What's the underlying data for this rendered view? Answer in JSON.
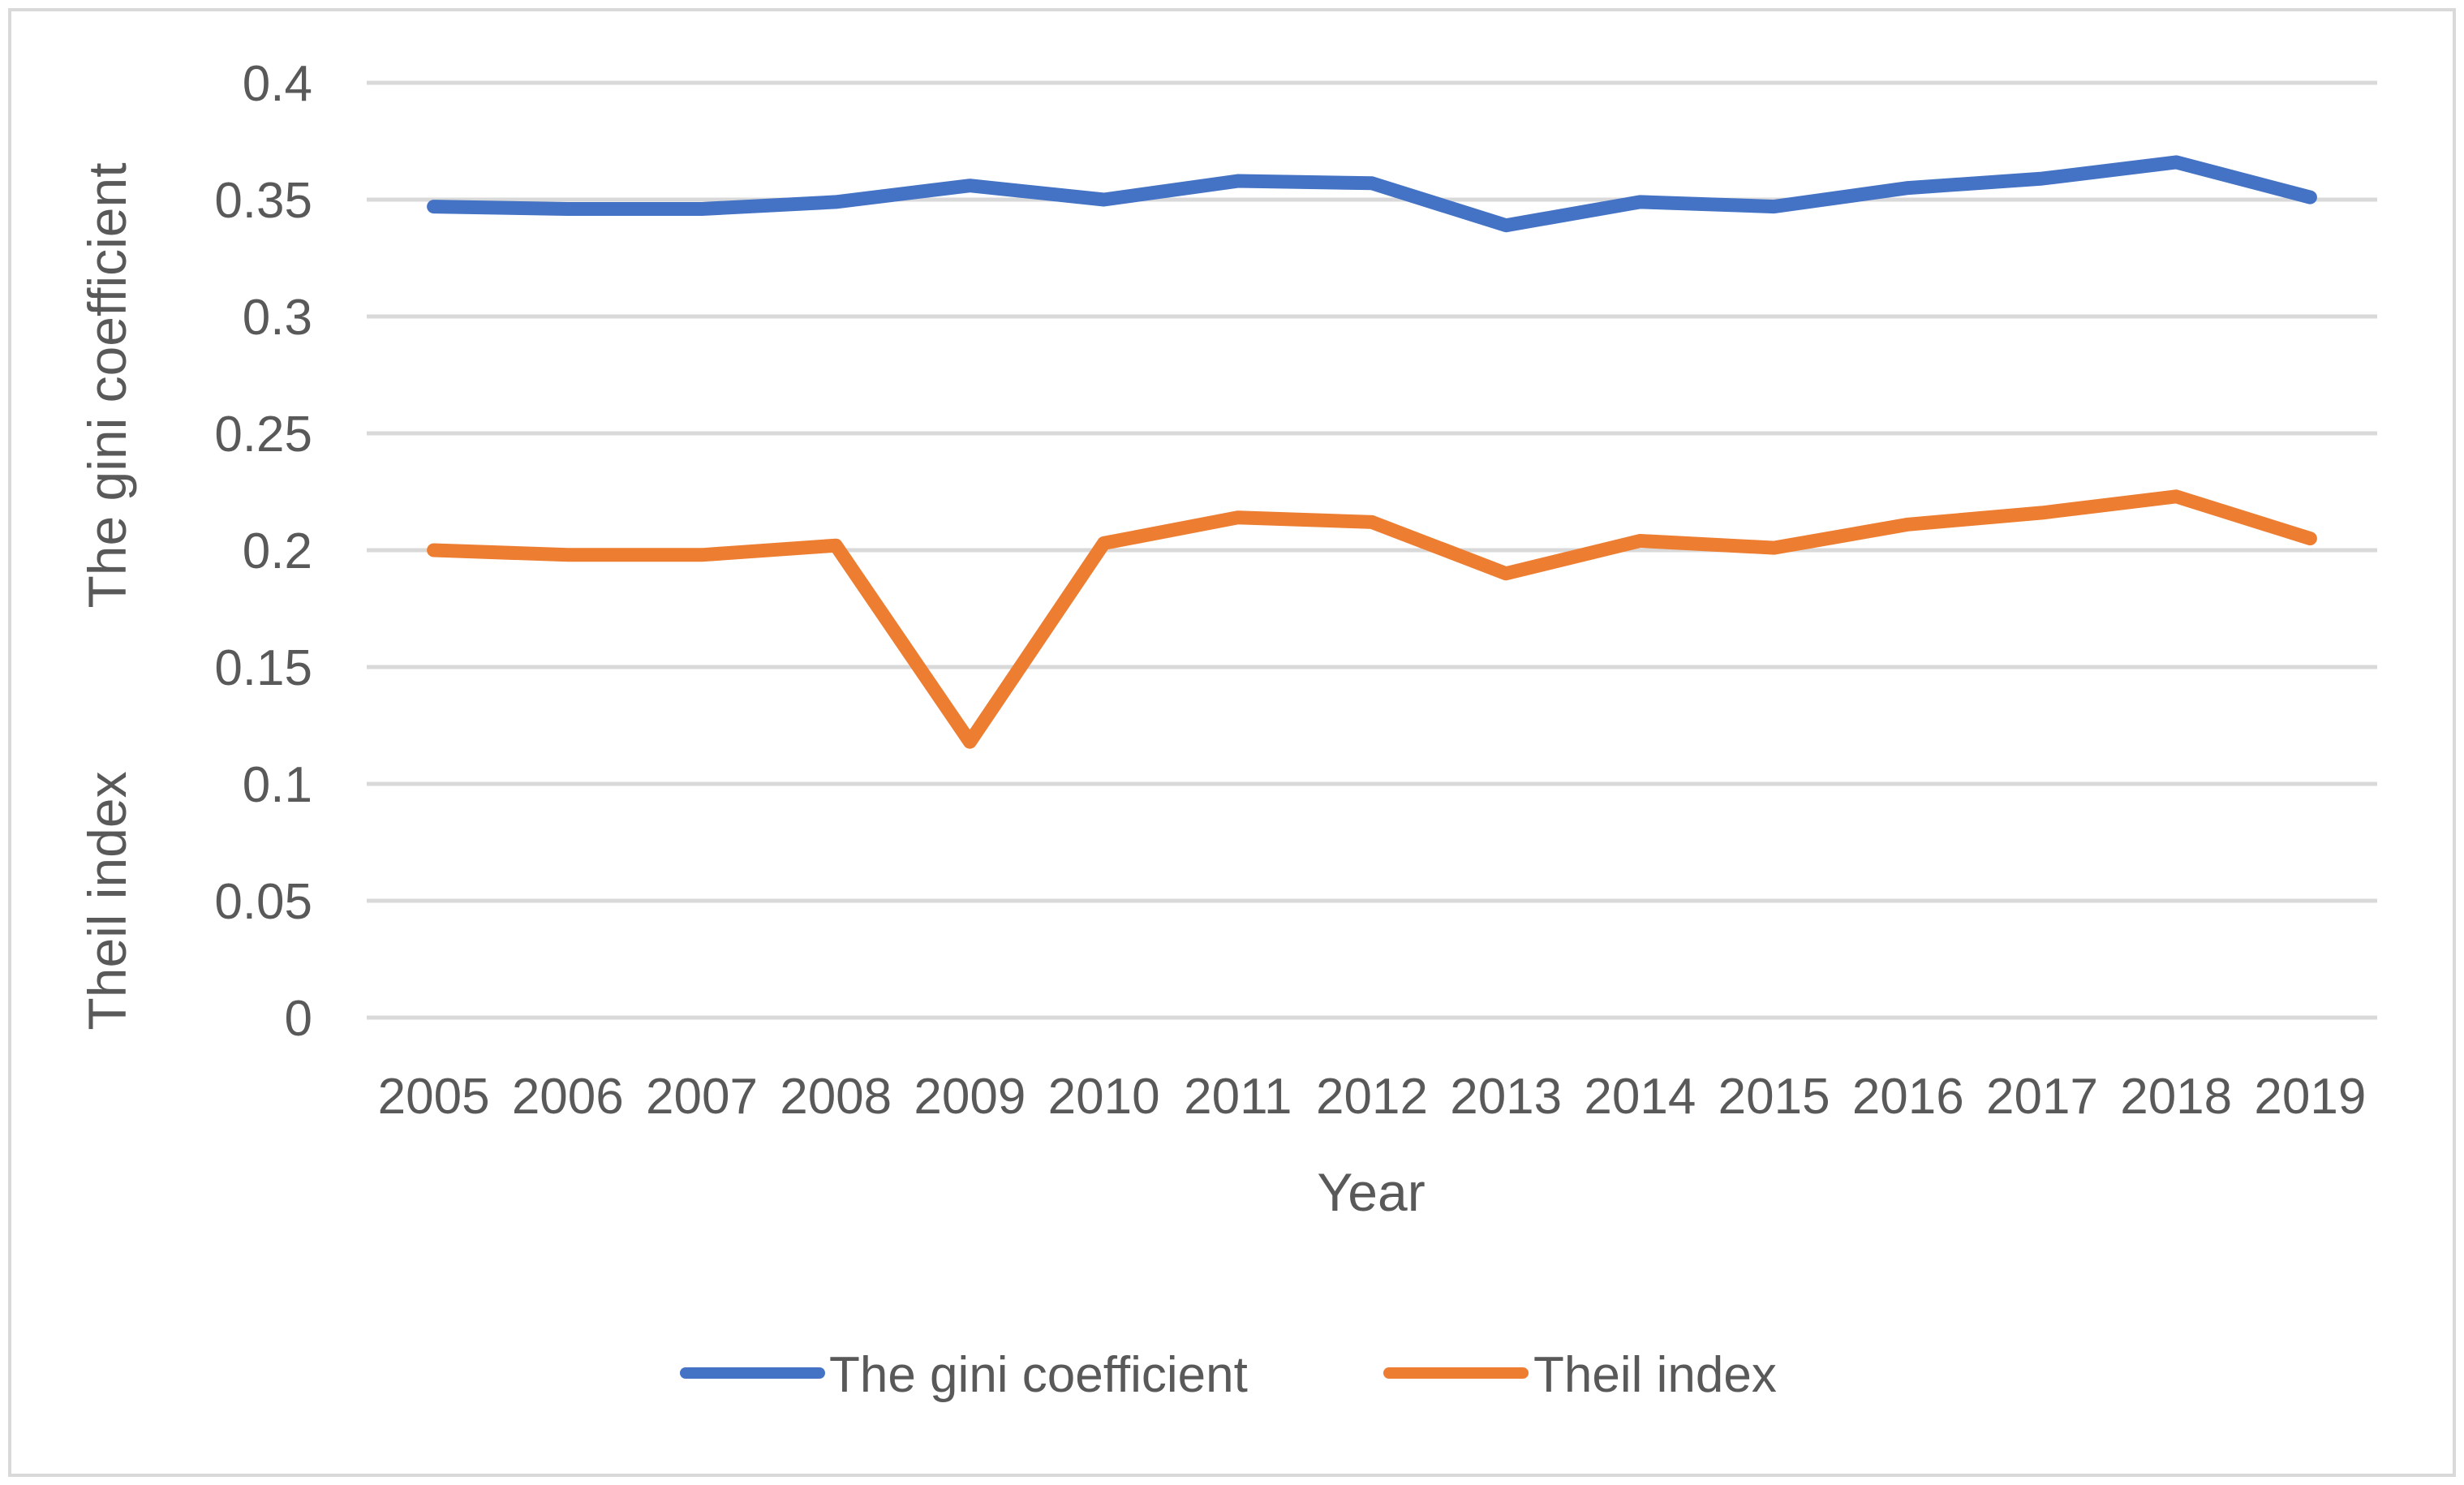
{
  "chart_data": {
    "type": "line",
    "title": "",
    "xlabel": "Year",
    "ylabel_top": "The gini coefficient",
    "ylabel_bottom": "Theil index",
    "categories": [
      "2005",
      "2006",
      "2007",
      "2008",
      "2009",
      "2010",
      "2011",
      "2012",
      "2013",
      "2014",
      "2015",
      "2016",
      "2017",
      "2018",
      "2019"
    ],
    "ylim": [
      0,
      0.4
    ],
    "yticks": [
      0,
      0.05,
      0.1,
      0.15,
      0.2,
      0.25,
      0.3,
      0.35,
      0.4
    ],
    "ytick_labels": [
      "0",
      "0.05",
      "0.1",
      "0.15",
      "0.2",
      "0.25",
      "0.3",
      "0.35",
      "0.4"
    ],
    "grid": true,
    "legend_position": "bottom",
    "series": [
      {
        "name": "The gini coefficient",
        "color": "#4472C4",
        "values": [
          0.347,
          0.346,
          0.346,
          0.349,
          0.356,
          0.35,
          0.358,
          0.357,
          0.339,
          0.349,
          0.347,
          0.355,
          0.359,
          0.366,
          0.351
        ]
      },
      {
        "name": "Theil index",
        "color": "#ED7D31",
        "values": [
          0.2,
          0.198,
          0.198,
          0.202,
          0.118,
          0.203,
          0.214,
          0.212,
          0.19,
          0.204,
          0.201,
          0.211,
          0.216,
          0.223,
          0.205
        ]
      }
    ]
  }
}
